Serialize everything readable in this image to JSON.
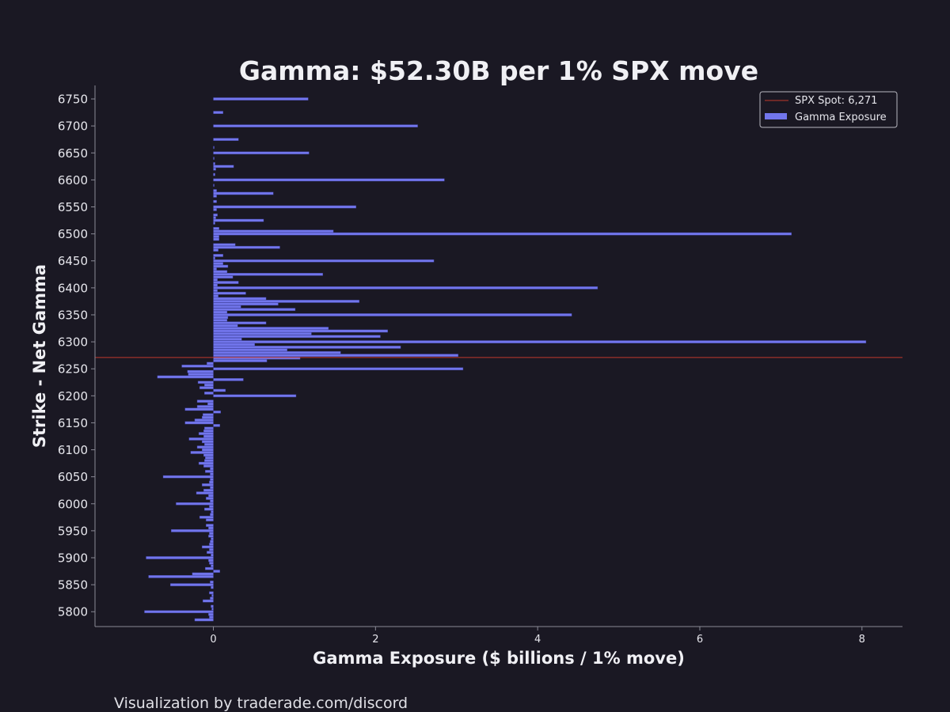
{
  "footer": "Visualization by traderade.com/discord",
  "colors": {
    "background": "#1a1823",
    "bar": "#7276ec",
    "spot_line": "#c0392b",
    "text": "#e6e6ec",
    "axis": "#8a8a96"
  },
  "chart_data": {
    "type": "bar",
    "orientation": "horizontal",
    "title": "Gamma: $52.30B per 1% SPX move",
    "xlabel": "Gamma Exposure ($ billions / 1% move)",
    "ylabel": "Strike - Net Gamma",
    "xlim": [
      -1.46,
      8.5
    ],
    "ylim": [
      5772.5,
      6775
    ],
    "xticks": [
      0,
      2,
      4,
      6,
      8
    ],
    "yticks": [
      5800,
      5850,
      5900,
      5950,
      6000,
      6050,
      6100,
      6150,
      6200,
      6250,
      6300,
      6350,
      6400,
      6450,
      6500,
      6550,
      6600,
      6650,
      6700,
      6750
    ],
    "grid": false,
    "legend_position": "top-right",
    "spot": {
      "label": "SPX Spot: 6,271",
      "value": 6271
    },
    "series": [
      {
        "name": "Gamma Exposure",
        "points": [
          [
            5785,
            -0.23
          ],
          [
            5790,
            -0.05
          ],
          [
            5795,
            -0.06
          ],
          [
            5800,
            -0.85
          ],
          [
            5805,
            -0.02
          ],
          [
            5810,
            -0.03
          ],
          [
            5820,
            -0.13
          ],
          [
            5825,
            -0.04
          ],
          [
            5830,
            -0.02
          ],
          [
            5835,
            -0.05
          ],
          [
            5845,
            -0.03
          ],
          [
            5850,
            -0.53
          ],
          [
            5855,
            -0.04
          ],
          [
            5865,
            -0.8
          ],
          [
            5870,
            -0.26
          ],
          [
            5875,
            0.08
          ],
          [
            5880,
            -0.1
          ],
          [
            5885,
            -0.03
          ],
          [
            5890,
            -0.05
          ],
          [
            5895,
            -0.06
          ],
          [
            5900,
            -0.83
          ],
          [
            5905,
            -0.03
          ],
          [
            5910,
            -0.08
          ],
          [
            5915,
            -0.05
          ],
          [
            5920,
            -0.14
          ],
          [
            5925,
            -0.05
          ],
          [
            5930,
            -0.04
          ],
          [
            5935,
            -0.03
          ],
          [
            5940,
            -0.06
          ],
          [
            5945,
            -0.05
          ],
          [
            5950,
            -0.52
          ],
          [
            5955,
            -0.06
          ],
          [
            5960,
            -0.09
          ],
          [
            5970,
            -0.09
          ],
          [
            5975,
            -0.17
          ],
          [
            5980,
            -0.04
          ],
          [
            5985,
            -0.03
          ],
          [
            5990,
            -0.11
          ],
          [
            5995,
            -0.05
          ],
          [
            6000,
            -0.46
          ],
          [
            6005,
            -0.04
          ],
          [
            6010,
            -0.09
          ],
          [
            6015,
            -0.06
          ],
          [
            6020,
            -0.21
          ],
          [
            6025,
            -0.12
          ],
          [
            6030,
            -0.04
          ],
          [
            6035,
            -0.14
          ],
          [
            6040,
            -0.05
          ],
          [
            6045,
            -0.04
          ],
          [
            6050,
            -0.62
          ],
          [
            6055,
            -0.04
          ],
          [
            6060,
            -0.1
          ],
          [
            6065,
            -0.04
          ],
          [
            6070,
            -0.12
          ],
          [
            6075,
            -0.18
          ],
          [
            6080,
            -0.11
          ],
          [
            6085,
            -0.1
          ],
          [
            6090,
            -0.12
          ],
          [
            6095,
            -0.28
          ],
          [
            6100,
            -0.14
          ],
          [
            6105,
            -0.2
          ],
          [
            6110,
            -0.11
          ],
          [
            6115,
            -0.14
          ],
          [
            6120,
            -0.3
          ],
          [
            6125,
            -0.12
          ],
          [
            6130,
            -0.18
          ],
          [
            6135,
            -0.12
          ],
          [
            6140,
            -0.11
          ],
          [
            6145,
            0.08
          ],
          [
            6150,
            -0.35
          ],
          [
            6155,
            -0.23
          ],
          [
            6160,
            -0.14
          ],
          [
            6165,
            -0.13
          ],
          [
            6170,
            0.09
          ],
          [
            6175,
            -0.35
          ],
          [
            6180,
            -0.2
          ],
          [
            6185,
            -0.07
          ],
          [
            6190,
            -0.2
          ],
          [
            6200,
            1.02
          ],
          [
            6205,
            -0.11
          ],
          [
            6210,
            0.15
          ],
          [
            6215,
            -0.17
          ],
          [
            6220,
            -0.11
          ],
          [
            6225,
            -0.19
          ],
          [
            6230,
            0.37
          ],
          [
            6235,
            -0.69
          ],
          [
            6240,
            -0.31
          ],
          [
            6245,
            -0.32
          ],
          [
            6250,
            3.08
          ],
          [
            6255,
            -0.39
          ],
          [
            6260,
            -0.08
          ],
          [
            6265,
            0.66
          ],
          [
            6270,
            1.07
          ],
          [
            6275,
            3.02
          ],
          [
            6280,
            1.57
          ],
          [
            6285,
            0.91
          ],
          [
            6290,
            2.31
          ],
          [
            6295,
            0.51
          ],
          [
            6300,
            8.05
          ],
          [
            6305,
            0.35
          ],
          [
            6310,
            2.06
          ],
          [
            6315,
            1.21
          ],
          [
            6320,
            2.15
          ],
          [
            6325,
            1.42
          ],
          [
            6330,
            0.3
          ],
          [
            6335,
            0.65
          ],
          [
            6340,
            0.17
          ],
          [
            6345,
            0.18
          ],
          [
            6350,
            4.42
          ],
          [
            6355,
            0.17
          ],
          [
            6360,
            1.01
          ],
          [
            6365,
            0.34
          ],
          [
            6370,
            0.8
          ],
          [
            6375,
            1.8
          ],
          [
            6380,
            0.65
          ],
          [
            6385,
            0.06
          ],
          [
            6390,
            0.4
          ],
          [
            6395,
            0.05
          ],
          [
            6400,
            4.74
          ],
          [
            6405,
            0.05
          ],
          [
            6410,
            0.31
          ],
          [
            6415,
            0.05
          ],
          [
            6420,
            0.24
          ],
          [
            6425,
            1.35
          ],
          [
            6430,
            0.17
          ],
          [
            6435,
            0.04
          ],
          [
            6440,
            0.18
          ],
          [
            6445,
            0.12
          ],
          [
            6450,
            2.72
          ],
          [
            6455,
            0.02
          ],
          [
            6460,
            0.12
          ],
          [
            6470,
            0.06
          ],
          [
            6475,
            0.82
          ],
          [
            6480,
            0.27
          ],
          [
            6490,
            0.07
          ],
          [
            6495,
            0.07
          ],
          [
            6500,
            7.13
          ],
          [
            6505,
            1.48
          ],
          [
            6510,
            0.07
          ],
          [
            6520,
            0.02
          ],
          [
            6525,
            0.62
          ],
          [
            6530,
            0.03
          ],
          [
            6535,
            0.05
          ],
          [
            6545,
            0.04
          ],
          [
            6550,
            1.76
          ],
          [
            6560,
            0.04
          ],
          [
            6570,
            0.04
          ],
          [
            6575,
            0.74
          ],
          [
            6580,
            0.04
          ],
          [
            6590,
            0.01
          ],
          [
            6600,
            2.85
          ],
          [
            6610,
            0.02
          ],
          [
            6620,
            0.03
          ],
          [
            6625,
            0.25
          ],
          [
            6630,
            0.02
          ],
          [
            6640,
            0.01
          ],
          [
            6650,
            1.18
          ],
          [
            6660,
            0.01
          ],
          [
            6675,
            0.31
          ],
          [
            6700,
            2.52
          ],
          [
            6725,
            0.12
          ],
          [
            6750,
            1.17
          ]
        ]
      }
    ]
  }
}
